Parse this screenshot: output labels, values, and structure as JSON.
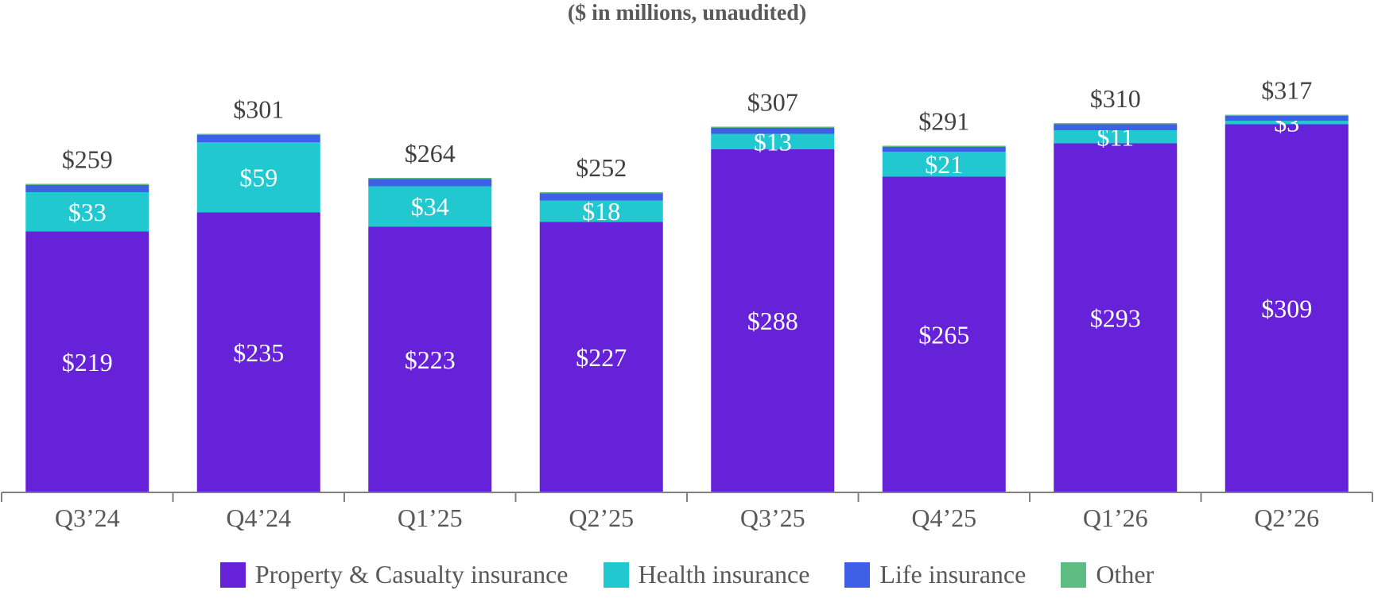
{
  "chart_data": {
    "type": "bar",
    "stacked": true,
    "subtitle": "($ in millions, unaudited)",
    "categories": [
      "Q3’24",
      "Q4’24",
      "Q1’25",
      "Q2’25",
      "Q3’25",
      "Q4’25",
      "Q1’26",
      "Q2’26"
    ],
    "series": [
      {
        "name": "Property & Casualty insurance",
        "color": "#6522D9",
        "values": [
          219,
          235,
          223,
          227,
          288,
          265,
          293,
          309
        ]
      },
      {
        "name": "Health insurance",
        "color": "#22C8D0",
        "values": [
          33,
          59,
          34,
          18,
          13,
          21,
          11,
          3
        ]
      },
      {
        "name": "Life insurance",
        "color": "#3F5FE6",
        "values": [
          6,
          6,
          6,
          6,
          5,
          4,
          5,
          4
        ]
      },
      {
        "name": "Other",
        "color": "#5CBC82",
        "values": [
          1,
          1,
          1,
          1,
          1,
          1,
          1,
          1
        ]
      }
    ],
    "totals": [
      259,
      301,
      264,
      252,
      307,
      291,
      310,
      317
    ],
    "segment_labels": [
      [
        "$219",
        "$235",
        "$223",
        "$227",
        "$288",
        "$265",
        "$293",
        "$309"
      ],
      [
        "$33",
        "$59",
        "$34",
        "$18",
        "$13",
        "$21",
        "$11",
        "$3"
      ]
    ],
    "total_labels": [
      "$259",
      "$301",
      "$264",
      "$252",
      "$307",
      "$291",
      "$310",
      "$317"
    ],
    "ylim": [
      0,
      320
    ],
    "grid": false,
    "legend_position": "bottom"
  }
}
